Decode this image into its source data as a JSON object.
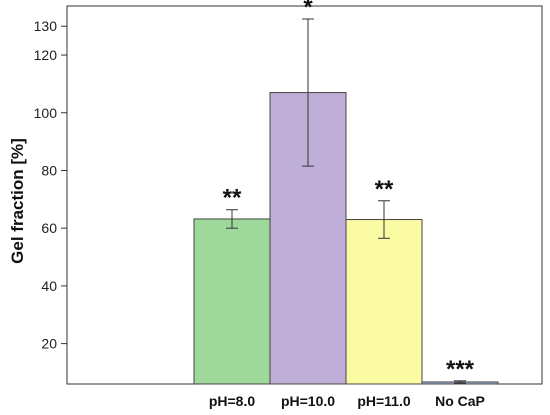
{
  "chart_data": {
    "type": "bar",
    "title": "",
    "xlabel": "",
    "ylabel": "Gel fraction [%]",
    "ylim": [
      6,
      137
    ],
    "y_ticks": [
      20,
      40,
      60,
      80,
      100,
      120,
      130
    ],
    "grid": false,
    "legend": "none",
    "categories": [
      "pH=8.0",
      "pH=10.0",
      "pH=11.0",
      "No CaP"
    ],
    "series": [
      {
        "values": [
          63.2,
          107.0,
          63.0,
          6.7
        ],
        "errors": [
          3.2,
          25.5,
          6.5,
          0.4
        ],
        "significance": [
          "**",
          "*",
          "**",
          "***"
        ],
        "colors": [
          "#9ed89a",
          "#bfaed8",
          "#fbfba3",
          "#a8bcdf"
        ]
      }
    ]
  }
}
